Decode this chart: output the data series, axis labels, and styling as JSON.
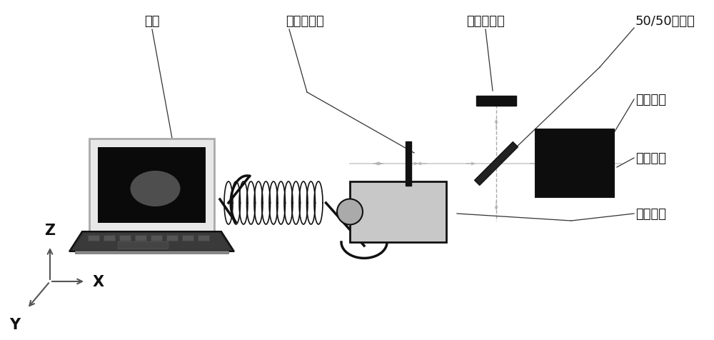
{
  "bg_color": "#ffffff",
  "label_diannao": "电脑",
  "label_jinshu1": "金属反射镜",
  "label_jinshu2": "金属反射镜",
  "label_beamsplitter": "50/50分光镜",
  "label_laser": "激光光源",
  "label_object": "待测物体",
  "label_camera": "面阵相机",
  "axis_x_label": "X",
  "axis_y_label": "Y",
  "axis_z_label": "Z",
  "figsize": [
    10.0,
    4.77
  ],
  "dpi": 100
}
